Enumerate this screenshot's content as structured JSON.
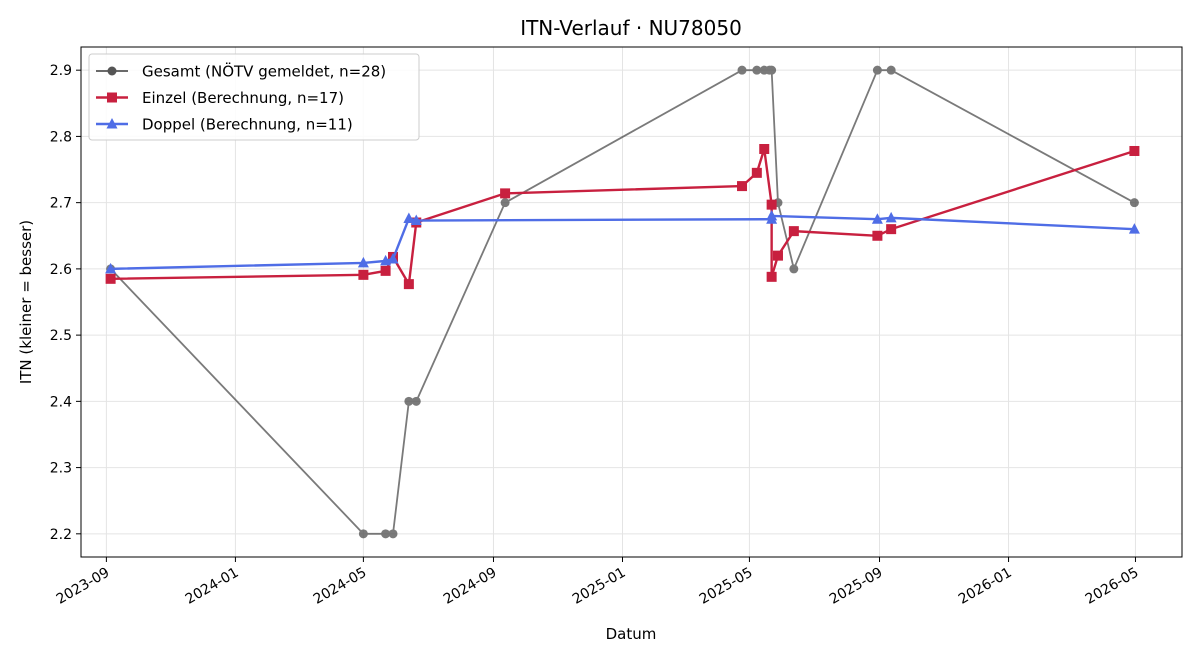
{
  "chart_data": {
    "type": "line",
    "title": "ITN-Verlauf · NU78050",
    "xlabel": "Datum",
    "ylabel": "ITN  (kleiner = besser)",
    "xlim": [
      "2023-08-08",
      "2026-06-14"
    ],
    "ylim": [
      2.165,
      2.935
    ],
    "grid": true,
    "legend_position": "top-left",
    "x_ticks": [
      "2023-09",
      "2024-01",
      "2024-05",
      "2024-09",
      "2025-01",
      "2025-05",
      "2025-09",
      "2026-01",
      "2026-05"
    ],
    "y_ticks": [
      2.2,
      2.3,
      2.4,
      2.5,
      2.6,
      2.7,
      2.8,
      2.9
    ],
    "series": [
      {
        "name": "Gesamt (NÖTV gemeldet, n=28)",
        "color": "#555555",
        "marker": "circle",
        "points": [
          {
            "x": "2023-09-05",
            "y": 2.6
          },
          {
            "x": "2024-05-01",
            "y": 2.2
          },
          {
            "x": "2024-05-22",
            "y": 2.2
          },
          {
            "x": "2024-05-29",
            "y": 2.2
          },
          {
            "x": "2024-06-13",
            "y": 2.4
          },
          {
            "x": "2024-06-20",
            "y": 2.4
          },
          {
            "x": "2024-09-12",
            "y": 2.7
          },
          {
            "x": "2025-04-24",
            "y": 2.9
          },
          {
            "x": "2025-05-08",
            "y": 2.9
          },
          {
            "x": "2025-05-15",
            "y": 2.9
          },
          {
            "x": "2025-05-20",
            "y": 2.9
          },
          {
            "x": "2025-05-22",
            "y": 2.9
          },
          {
            "x": "2025-05-28",
            "y": 2.7
          },
          {
            "x": "2025-06-12",
            "y": 2.6
          },
          {
            "x": "2025-08-30",
            "y": 2.9
          },
          {
            "x": "2025-09-12",
            "y": 2.9
          },
          {
            "x": "2026-04-30",
            "y": 2.7
          }
        ]
      },
      {
        "name": "Einzel (Berechnung, n=17)",
        "color": "#c8203f",
        "marker": "square",
        "points": [
          {
            "x": "2023-09-05",
            "y": 2.585
          },
          {
            "x": "2024-05-01",
            "y": 2.591
          },
          {
            "x": "2024-05-22",
            "y": 2.597
          },
          {
            "x": "2024-05-29",
            "y": 2.618
          },
          {
            "x": "2024-06-13",
            "y": 2.577
          },
          {
            "x": "2024-06-20",
            "y": 2.67
          },
          {
            "x": "2024-09-12",
            "y": 2.714
          },
          {
            "x": "2025-04-24",
            "y": 2.725
          },
          {
            "x": "2025-05-08",
            "y": 2.745
          },
          {
            "x": "2025-05-15",
            "y": 2.781
          },
          {
            "x": "2025-05-22",
            "y": 2.697
          },
          {
            "x": "2025-05-22",
            "y": 2.588
          },
          {
            "x": "2025-05-28",
            "y": 2.62
          },
          {
            "x": "2025-06-12",
            "y": 2.657
          },
          {
            "x": "2025-08-30",
            "y": 2.65
          },
          {
            "x": "2025-09-12",
            "y": 2.66
          },
          {
            "x": "2026-04-30",
            "y": 2.778
          }
        ]
      },
      {
        "name": "Doppel (Berechnung, n=11)",
        "color": "#4f6de6",
        "marker": "triangle",
        "points": [
          {
            "x": "2023-09-05",
            "y": 2.6
          },
          {
            "x": "2024-05-01",
            "y": 2.609
          },
          {
            "x": "2024-05-22",
            "y": 2.612
          },
          {
            "x": "2024-05-29",
            "y": 2.615
          },
          {
            "x": "2024-06-13",
            "y": 2.676
          },
          {
            "x": "2024-06-20",
            "y": 2.673
          },
          {
            "x": "2025-05-22",
            "y": 2.675
          },
          {
            "x": "2025-05-22",
            "y": 2.68
          },
          {
            "x": "2025-08-30",
            "y": 2.675
          },
          {
            "x": "2025-09-12",
            "y": 2.677
          },
          {
            "x": "2026-04-30",
            "y": 2.66
          }
        ]
      }
    ]
  }
}
